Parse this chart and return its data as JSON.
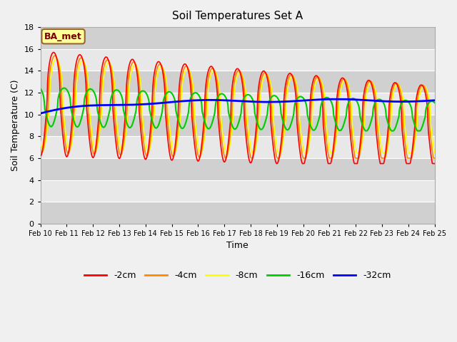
{
  "title": "Soil Temperatures Set A",
  "xlabel": "Time",
  "ylabel": "Soil Temperature (C)",
  "ylim": [
    0,
    18
  ],
  "yticks": [
    0,
    2,
    4,
    6,
    8,
    10,
    12,
    14,
    16,
    18
  ],
  "x_tick_labels": [
    "Feb 10",
    "Feb 11",
    "Feb 12",
    "Feb 13",
    "Feb 14",
    "Feb 15",
    "Feb 16",
    "Feb 17",
    "Feb 18",
    "Feb 19",
    "Feb 20",
    "Feb 21",
    "Feb 22",
    "Feb 23",
    "Feb 24",
    "Feb 25"
  ],
  "annotation_text": "BA_met",
  "annotation_bg": "#ffff99",
  "annotation_border": "#996633",
  "colors": {
    "-2cm": "#ff0000",
    "-4cm": "#ff8800",
    "-8cm": "#ffff00",
    "-16cm": "#00cc00",
    "-32cm": "#0000ff"
  },
  "fig_bg": "#f0f0f0",
  "plot_bg_light": "#e8e8e8",
  "plot_bg_dark": "#d0d0d0",
  "grid_color": "#ffffff"
}
